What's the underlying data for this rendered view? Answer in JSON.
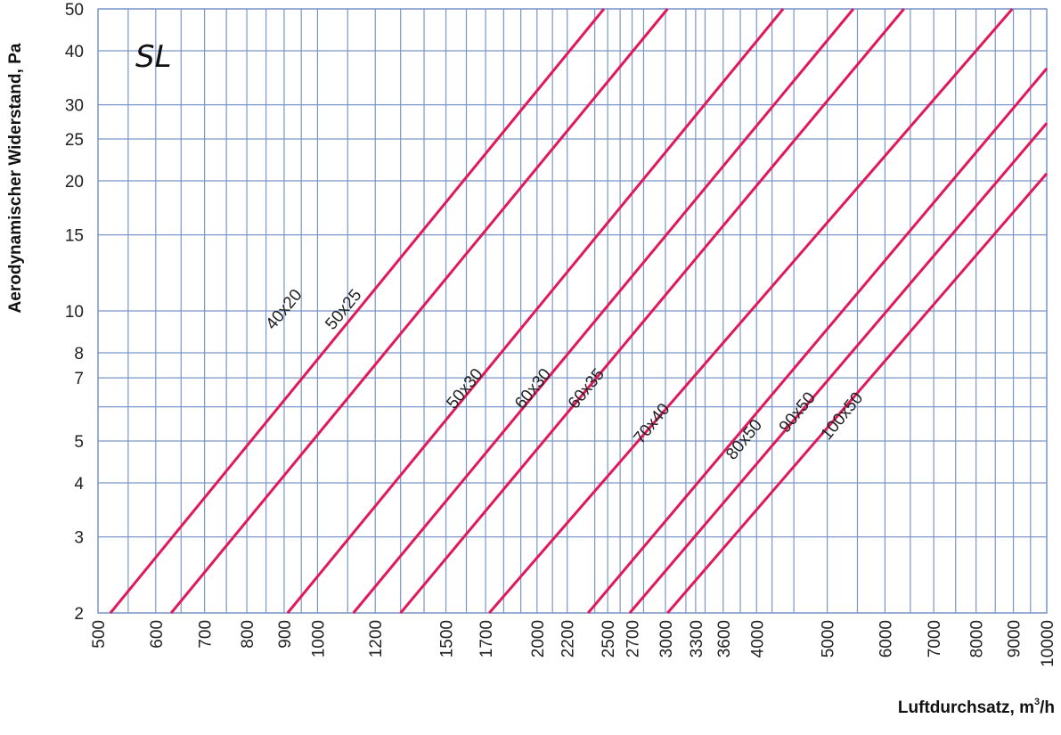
{
  "chart_data": {
    "type": "line",
    "title": "SL",
    "xlabel": "Luftdurchsatz, m",
    "xlabel_sup": "3",
    "xlabel_suffix": "/h",
    "ylabel": "Aerodynamischer Widerstand, Pa",
    "x_scale": "log",
    "y_scale": "log",
    "xlim": [
      500,
      10000
    ],
    "ylim": [
      2,
      50
    ],
    "grid": true,
    "x_ticks": [
      500,
      600,
      700,
      800,
      900,
      1000,
      1200,
      1500,
      1700,
      2000,
      2200,
      2500,
      2700,
      3000,
      3300,
      3600,
      4000,
      5000,
      6000,
      7000,
      8000,
      9000,
      10000
    ],
    "x_minor_grid": [
      550,
      650,
      750,
      850,
      950,
      1100,
      1300,
      1400,
      1600,
      1800,
      1900,
      2100,
      2400,
      2600,
      2800,
      3200,
      3400,
      3800,
      4200,
      4500,
      5500,
      6500,
      7500,
      8500,
      9500
    ],
    "y_ticks": [
      2,
      3,
      4,
      5,
      7,
      8,
      10,
      15,
      20,
      25,
      30,
      40,
      50
    ],
    "y_minor_grid": [
      6
    ],
    "line_color": "#e0195a",
    "grid_color": "#7b96c8",
    "series": [
      {
        "name": "40x20",
        "x": [
          520,
          2470
        ],
        "y": [
          2,
          50
        ]
      },
      {
        "name": "50x25",
        "x": [
          630,
          3020
        ],
        "y": [
          2,
          50
        ]
      },
      {
        "name": "50x30",
        "x": [
          910,
          4350
        ],
        "y": [
          2,
          50
        ]
      },
      {
        "name": "60x30",
        "x": [
          1120,
          5430
        ],
        "y": [
          2,
          50
        ]
      },
      {
        "name": "60x35",
        "x": [
          1300,
          6370
        ],
        "y": [
          2,
          50
        ]
      },
      {
        "name": "70x40",
        "x": [
          1720,
          8970
        ],
        "y": [
          2,
          50
        ]
      },
      {
        "name": "80x50",
        "x": [
          2350,
          10000
        ],
        "y": [
          2,
          36.4
        ]
      },
      {
        "name": "90x50",
        "x": [
          2680,
          10000
        ],
        "y": [
          2,
          27.2
        ]
      },
      {
        "name": "100x50",
        "x": [
          3020,
          10000
        ],
        "y": [
          2,
          20.8
        ]
      }
    ],
    "series_label_positions": [
      {
        "name": "40x20",
        "x": 870,
        "y": 9.0
      },
      {
        "name": "50x25",
        "x": 1050,
        "y": 9.0
      },
      {
        "name": "50x30",
        "x": 1540,
        "y": 5.9
      },
      {
        "name": "60x30",
        "x": 1910,
        "y": 5.9
      },
      {
        "name": "60x35",
        "x": 2260,
        "y": 5.9
      },
      {
        "name": "70x40",
        "x": 2780,
        "y": 4.9
      },
      {
        "name": "80x50",
        "x": 3720,
        "y": 4.5
      },
      {
        "name": "90x50",
        "x": 4400,
        "y": 5.2
      },
      {
        "name": "100x50",
        "x": 5020,
        "y": 5.0
      }
    ]
  }
}
